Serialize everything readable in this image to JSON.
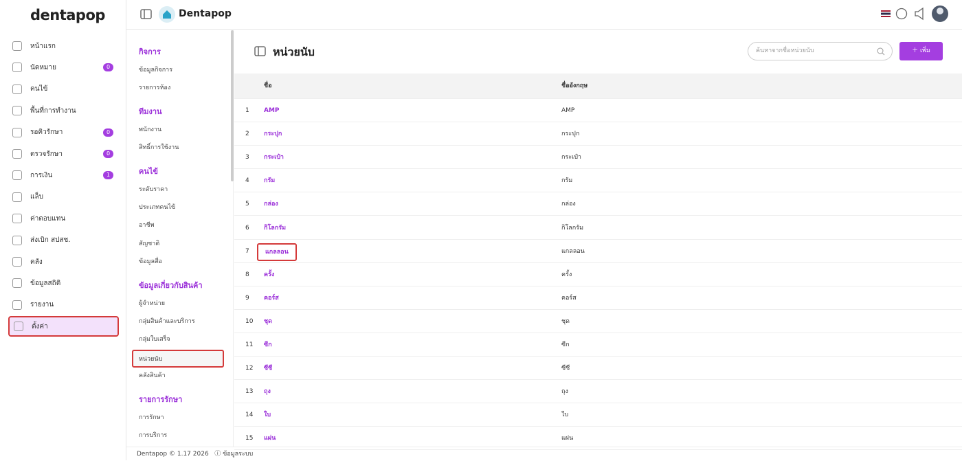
{
  "brand": "dentapop",
  "header": {
    "app_name": "Dentapop"
  },
  "sidebar": {
    "items": [
      {
        "label": "หน้าแรก"
      },
      {
        "label": "นัดหมาย",
        "badge": 0
      },
      {
        "label": "คนไข้"
      },
      {
        "label": "พื้นที่การทำงาน"
      },
      {
        "label": "รอคิวรักษา",
        "badge": 0
      },
      {
        "label": "ตรวจรักษา",
        "badge": 0
      },
      {
        "label": "การเงิน",
        "badge": 1
      },
      {
        "label": "แล็บ"
      },
      {
        "label": "ค่าตอบแทน"
      },
      {
        "label": "ส่งเบิก สปสช."
      },
      {
        "label": "คลัง"
      },
      {
        "label": "ข้อมูลสถิติ"
      },
      {
        "label": "รายงาน"
      },
      {
        "label": "ตั้งค่า"
      }
    ]
  },
  "settings_menu": {
    "sections": [
      {
        "title": "กิจการ",
        "items": [
          "ข้อมูลกิจการ",
          "รายการห้อง"
        ]
      },
      {
        "title": "ทีมงาน",
        "items": [
          "พนักงาน",
          "สิทธิ์การใช้งาน"
        ]
      },
      {
        "title": "คนไข้",
        "items": [
          "ระดับราคา",
          "ประเภทคนไข้",
          "อาชีพ",
          "สัญชาติ",
          "ข้อมูลสื่อ"
        ]
      },
      {
        "title": "ข้อมูลเกี่ยวกับสินค้า",
        "items": [
          "ผู้จำหน่าย",
          "กลุ่มสินค้าและบริการ",
          "กลุ่มใบเสร็จ",
          "หน่วยนับ",
          "คลังสินค้า"
        ]
      },
      {
        "title": "รายการรักษา",
        "items": [
          "การรักษา",
          "การบริการ"
        ]
      }
    ]
  },
  "page": {
    "title": "หน่วยนับ",
    "search_placeholder": "ค้นหาจากชื่อหน่วยนับ",
    "add_button": "เพิ่ม"
  },
  "table": {
    "columns": [
      "ชื่อ",
      "ชื่ออังกฤษ"
    ],
    "rows": [
      [
        1,
        "AMP",
        "AMP"
      ],
      [
        2,
        "กระปุก",
        "กระปุก"
      ],
      [
        3,
        "กระเป๋า",
        "กระเป๋า"
      ],
      [
        4,
        "กรัม",
        "กรัม"
      ],
      [
        5,
        "กล่อง",
        "กล่อง"
      ],
      [
        6,
        "กิโลกรัม",
        "กิโลกรัม"
      ],
      [
        7,
        "แกลลอน",
        "แกลลอน"
      ],
      [
        8,
        "ครั้ง",
        "ครั้ง"
      ],
      [
        9,
        "คอร์ส",
        "คอร์ส"
      ],
      [
        10,
        "ชุด",
        "ชุด"
      ],
      [
        11,
        "ซีก",
        "ซีก"
      ],
      [
        12,
        "ซีซี",
        "ซีซี"
      ],
      [
        13,
        "ถุง",
        "ถุง"
      ],
      [
        14,
        "ใบ",
        "ใบ"
      ],
      [
        15,
        "แผ่น",
        "แผ่น"
      ]
    ]
  },
  "footer": {
    "version": "Dentapop © 1.17 2026",
    "system_info": "ข้อมูลระบบ"
  }
}
